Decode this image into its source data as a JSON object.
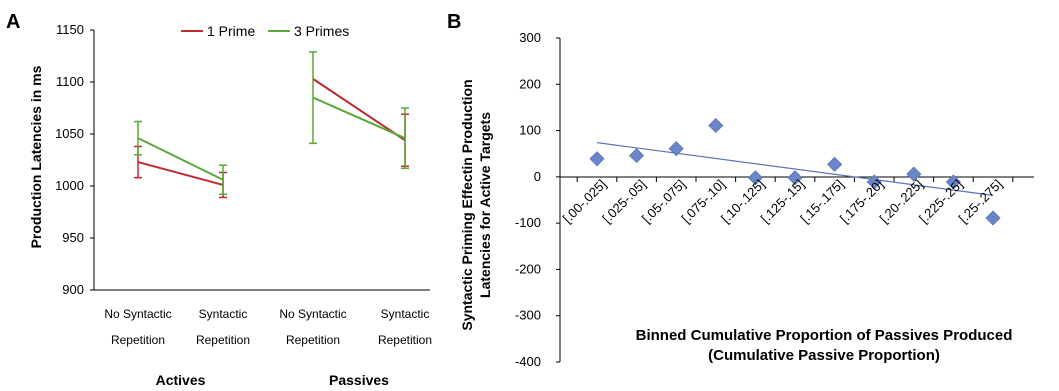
{
  "chart_data": [
    {
      "panel_label": "A",
      "type": "line",
      "ylabel": "Production Latencies in ms",
      "ylim": [
        900,
        1150
      ],
      "yticks": [
        "900",
        "950",
        "1000",
        "1050",
        "1100",
        "1150"
      ],
      "categories": [
        [
          "No Syntactic",
          "Repetition"
        ],
        [
          "Syntactic",
          "Repetition"
        ],
        [
          "No Syntactic",
          "Repetition"
        ],
        [
          "Syntactic",
          "Repetition"
        ]
      ],
      "groups": [
        {
          "label": "Actives",
          "categories": [
            0,
            1
          ]
        },
        {
          "label": "Passives",
          "categories": [
            2,
            3
          ]
        }
      ],
      "legend_position": "top",
      "series": [
        {
          "name": "1 Prime",
          "color": "#c0282d",
          "values": [
            1023,
            1001,
            1103,
            1044
          ],
          "error": [
            15,
            12,
            0,
            25
          ]
        },
        {
          "name": "3 Primes",
          "color": "#58a83a",
          "values": [
            1046,
            1006,
            1085,
            1046
          ],
          "error": [
            16,
            14,
            44,
            29
          ]
        }
      ]
    },
    {
      "panel_label": "B",
      "type": "scatter",
      "xlabel": [
        "Binned Cumulative Proportion of Passives Produced",
        "(Cumulative Passive Proportion)"
      ],
      "ylabel": [
        "Syntactic Priming Effectin Production",
        "Latencies for Active Targets"
      ],
      "ylim": [
        -400,
        300
      ],
      "yticks": [
        "-400",
        "-300",
        "-200",
        "-100",
        "0",
        "100",
        "200",
        "300"
      ],
      "categories": [
        "[.00-.025]",
        "[.025-.05]",
        "[.05-.075]",
        "[.075-.10]",
        "[.10-.125]",
        "[.125-.15]",
        "[.15-.175]",
        "[.175-.20]",
        "[.20-.225]",
        "[.225-.25]",
        "[.25-.275]"
      ],
      "values": [
        39,
        46,
        61,
        111,
        -2,
        -2,
        27,
        -11,
        6,
        -11,
        -89
      ],
      "marker_color": "#6a86c8",
      "trendline": {
        "color": "#5b74b5",
        "start": 74,
        "end": -40
      }
    }
  ]
}
